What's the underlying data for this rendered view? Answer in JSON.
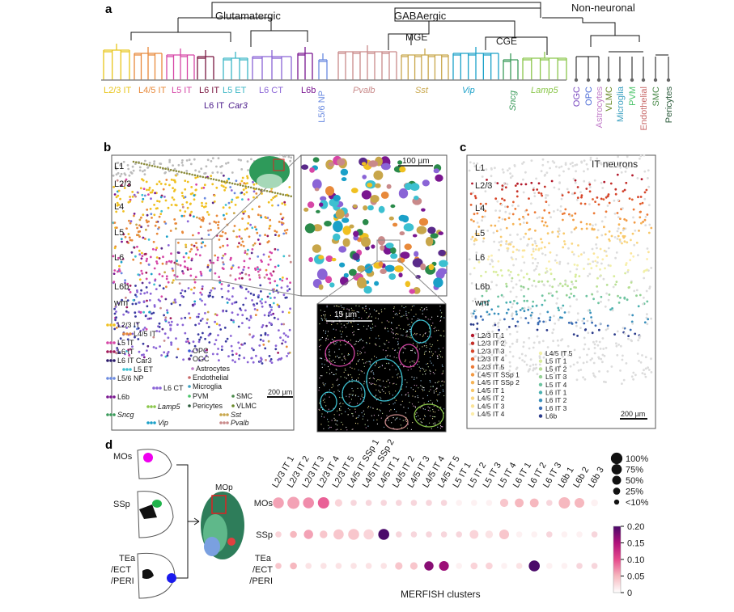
{
  "panel_a": {
    "label": "a",
    "groups": [
      "Glutamatergic",
      "GABAergic",
      "Non-neuronal",
      "MGE",
      "CGE"
    ],
    "clusters": [
      {
        "text": "L2/3 IT",
        "color": "#e8c51a",
        "italic": false,
        "vertical": false
      },
      {
        "text": "L4/5 IT",
        "color": "#e8893a",
        "italic": false,
        "vertical": false
      },
      {
        "text": "L5 IT",
        "color": "#d646a6",
        "italic": false,
        "vertical": false
      },
      {
        "text": "L6 IT",
        "color": "#7a1640",
        "italic": false,
        "vertical": false
      },
      {
        "text": "L5 ET",
        "color": "#3cb7c6",
        "italic": false,
        "vertical": false
      },
      {
        "text": "L6 CT",
        "color": "#8a64d6",
        "italic": false,
        "vertical": false
      },
      {
        "text": "L6b",
        "color": "#7a1690",
        "italic": false,
        "vertical": false
      },
      {
        "text": "L5/6 NP",
        "color": "#6a8ae0",
        "italic": false,
        "vertical": true
      },
      {
        "text": "Pvalb",
        "color": "#c98a8a",
        "italic": true,
        "vertical": false
      },
      {
        "text": "Sst",
        "color": "#c8a64a",
        "italic": true,
        "vertical": false
      },
      {
        "text": "Vip",
        "color": "#1aa0c8",
        "italic": true,
        "vertical": false
      },
      {
        "text": "Sncg",
        "color": "#3a9a5a",
        "italic": true,
        "vertical": true
      },
      {
        "text": "Lamp5",
        "color": "#8ac64a",
        "italic": true,
        "vertical": false
      }
    ],
    "l6_it_car3": {
      "prefix": "L6 IT ",
      "gene": "Car3",
      "color": "#4a1a8a"
    },
    "non_neuronal": [
      {
        "text": "OGC",
        "color": "#7a4ac0"
      },
      {
        "text": "OPC",
        "color": "#4a6ad6"
      },
      {
        "text": "Astrocytes",
        "color": "#c07ac8"
      },
      {
        "text": "VLMC",
        "color": "#6a8a2a"
      },
      {
        "text": "Microglia",
        "color": "#3aa0c0"
      },
      {
        "text": "PVM",
        "color": "#4ac46a"
      },
      {
        "text": "Endothelial",
        "color": "#c86a6a"
      },
      {
        "text": "SMC",
        "color": "#4a8a4a"
      },
      {
        "text": "Pericytes",
        "color": "#2a5a3a"
      }
    ]
  },
  "panel_b": {
    "label": "b",
    "layers": [
      "L1",
      "L2/3",
      "L4",
      "L5",
      "L6",
      "L6b",
      "wm"
    ],
    "scalebar": "200 µm",
    "zoom_scalebar": "100 µm",
    "molecule_scalebar": "15 µm",
    "legend": [
      {
        "text": "L2/3 IT",
        "color": "#f0c020"
      },
      {
        "text": "L4/5 IT",
        "color": "#e8893a"
      },
      {
        "text": "L5 IT",
        "color": "#d646a6"
      },
      {
        "text": "L6 IT",
        "color": "#a01a5a"
      },
      {
        "text": "L6 IT Car3",
        "color": "#2a1a6a"
      },
      {
        "text": "L5 ET",
        "color": "#3cc0d0"
      },
      {
        "text": "L5/6 NP",
        "color": "#6a8ae0"
      },
      {
        "text": "L6 CT",
        "color": "#8a64d6"
      },
      {
        "text": "L6b",
        "color": "#7a1690"
      },
      {
        "text": "Lamp5",
        "color": "#8ac64a"
      },
      {
        "text": "Sncg",
        "color": "#3a9a5a"
      },
      {
        "text": "Vip",
        "color": "#1aa0c8"
      },
      {
        "text": "OPC",
        "color": "#3a5ad6"
      },
      {
        "text": "OGC",
        "color": "#5a2a8a"
      },
      {
        "text": "Astrocytes",
        "color": "#c07ac8"
      },
      {
        "text": "Endothelial",
        "color": "#c86a6a"
      },
      {
        "text": "Microglia",
        "color": "#3aa0c0"
      },
      {
        "text": "PVM",
        "color": "#4ac46a"
      },
      {
        "text": "Pericytes",
        "color": "#2a5a3a"
      },
      {
        "text": "SMC",
        "color": "#4a8a4a"
      },
      {
        "text": "VLMC",
        "color": "#6a8a2a"
      },
      {
        "text": "Sst",
        "color": "#c8a64a"
      },
      {
        "text": "Pvalb",
        "color": "#c98a8a"
      }
    ]
  },
  "panel_c": {
    "label": "c",
    "title": "IT neurons",
    "layers": [
      "L1",
      "L2/3",
      "L4",
      "L5",
      "L6",
      "L6b",
      "wm"
    ],
    "scalebar": "200 µm",
    "legend_left": [
      {
        "text": "L2/3 IT 1",
        "color": "#b2182b"
      },
      {
        "text": "L2/3 IT 2",
        "color": "#c4302a"
      },
      {
        "text": "L2/3 IT 3",
        "color": "#d6452a"
      },
      {
        "text": "L2/3 IT 4",
        "color": "#e25f2e"
      },
      {
        "text": "L2/3 IT 5",
        "color": "#ec7a36"
      },
      {
        "text": "L4/5 IT SSp 1",
        "color": "#f29a44"
      },
      {
        "text": "L4/5 IT SSp 2",
        "color": "#f6b456"
      },
      {
        "text": "L4/5 IT 1",
        "color": "#f8c86a"
      },
      {
        "text": "L4/5 IT 2",
        "color": "#fad680"
      },
      {
        "text": "L4/5 IT 3",
        "color": "#fbe396"
      },
      {
        "text": "L4/5 IT 4",
        "color": "#fcedaa"
      }
    ],
    "legend_right": [
      {
        "text": "L4/5 IT 5",
        "color": "#f2f0a8"
      },
      {
        "text": "L5 IT 1",
        "color": "#d8ec9a"
      },
      {
        "text": "L5 IT 2",
        "color": "#b8e094"
      },
      {
        "text": "L5 IT 3",
        "color": "#94d294"
      },
      {
        "text": "L5 IT 4",
        "color": "#6ec4a0"
      },
      {
        "text": "L6 IT 1",
        "color": "#4ab0b0"
      },
      {
        "text": "L6 IT 2",
        "color": "#3a90bc"
      },
      {
        "text": "L6 IT 3",
        "color": "#3a6cb4"
      },
      {
        "text": "L6b",
        "color": "#2a3a8a"
      }
    ]
  },
  "panel_d": {
    "label": "d",
    "regions_left": [
      "MOs",
      "SSp"
    ],
    "regions_left_stack": [
      "TEa",
      "/ECT",
      "/PERI"
    ],
    "mop_label": "MOp",
    "rows": [
      "MOs",
      "SSp",
      "TEa",
      "/ECT",
      "/PERI"
    ],
    "xlabel": "MERFISH clusters",
    "size_legend": [
      "100%",
      "75%",
      "50%",
      "25%",
      "<10%"
    ],
    "colorbar_ticks": [
      "0.20",
      "0.15",
      "0.10",
      "0.05",
      "0"
    ]
  },
  "chart_data": {
    "type": "scatter",
    "title": "",
    "xlabel": "MERFISH clusters",
    "ylabel": "",
    "categories": [
      "L2/3 IT 1",
      "L2/3 IT 2",
      "L2/3 IT 3",
      "L2/3 IT 4",
      "L2/3 IT 5",
      "L4/5 IT SSp 1",
      "L4/5 IT SSp 2",
      "L4/5 IT 1",
      "L4/5 IT 2",
      "L4/5 IT 3",
      "L4/5 IT 4",
      "L4/5 IT 5",
      "L5 IT 1",
      "L5 IT 2",
      "L5 IT 3",
      "L5 IT 4",
      "L6 IT 1",
      "L6 IT 2",
      "L6 IT 3",
      "L6b 1",
      "L6b 2",
      "L6b 3"
    ],
    "regions": [
      "MOs",
      "SSp",
      "TEa/ECT/PERI"
    ],
    "size_pct": [
      [
        55,
        70,
        55,
        60,
        18,
        10,
        10,
        10,
        10,
        10,
        10,
        10,
        10,
        10,
        10,
        25,
        30,
        30,
        10,
        60,
        40,
        15
      ],
      [
        10,
        15,
        35,
        20,
        45,
        55,
        45,
        55,
        10,
        10,
        10,
        10,
        10,
        30,
        20,
        40,
        10,
        10,
        10,
        10,
        10,
        10
      ],
      [
        10,
        15,
        10,
        10,
        10,
        10,
        10,
        10,
        18,
        18,
        35,
        40,
        10,
        15,
        15,
        10,
        10,
        55,
        10,
        10,
        10,
        10
      ]
    ],
    "color_value": [
      [
        0.06,
        0.06,
        0.07,
        0.09,
        0.03,
        0.0,
        0.0,
        0.0,
        0.0,
        0.0,
        0.0,
        0.0,
        0.01,
        0.01,
        0.01,
        0.04,
        0.05,
        0.05,
        0.0,
        0.05,
        0.05,
        0.01
      ],
      [
        0.03,
        0.05,
        0.06,
        0.04,
        0.04,
        0.04,
        0.03,
        0.2,
        0.0,
        0.0,
        0.0,
        0.0,
        0.0,
        0.03,
        0.02,
        0.04,
        0.01,
        0.01,
        0.0,
        0.01,
        0.01,
        0.0
      ],
      [
        0.04,
        0.05,
        0.02,
        0.02,
        0.02,
        0.02,
        0.02,
        0.02,
        0.04,
        0.04,
        0.17,
        0.16,
        0.01,
        0.03,
        0.03,
        0.01,
        0.02,
        0.2,
        0.01,
        0.01,
        0.0,
        0.0
      ]
    ],
    "colorbar_range": [
      0,
      0.2
    ],
    "size_legend": [
      "100%",
      "75%",
      "50%",
      "25%",
      "<10%"
    ]
  }
}
